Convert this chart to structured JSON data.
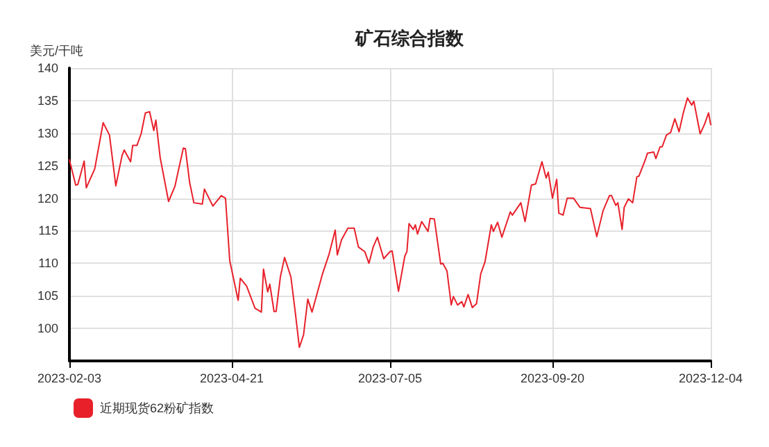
{
  "chart_data": {
    "type": "line",
    "title": "矿石综合指数",
    "ylabel": "美元/干吨",
    "x": [
      "2023-02-03",
      "2023-02-06",
      "2023-02-07",
      "2023-02-10",
      "2023-02-11",
      "2023-02-15",
      "2023-02-19",
      "2023-02-22",
      "2023-02-25",
      "2023-02-28",
      "2023-03-01",
      "2023-03-04",
      "2023-03-05",
      "2023-03-07",
      "2023-03-09",
      "2023-03-11",
      "2023-03-13",
      "2023-03-15",
      "2023-03-16",
      "2023-03-18",
      "2023-03-22",
      "2023-03-25",
      "2023-03-29",
      "2023-03-30",
      "2023-04-01",
      "2023-04-03",
      "2023-04-07",
      "2023-04-08",
      "2023-04-12",
      "2023-04-16",
      "2023-04-18",
      "2023-04-20",
      "2023-04-24",
      "2023-04-25",
      "2023-04-28",
      "2023-05-02",
      "2023-05-05",
      "2023-05-06",
      "2023-05-08",
      "2023-05-09",
      "2023-05-11",
      "2023-05-12",
      "2023-05-14",
      "2023-05-16",
      "2023-05-19",
      "2023-05-21",
      "2023-05-23",
      "2023-05-25",
      "2023-05-27",
      "2023-05-29",
      "2023-06-03",
      "2023-06-06",
      "2023-06-09",
      "2023-06-10",
      "2023-06-12",
      "2023-06-15",
      "2023-06-18",
      "2023-06-20",
      "2023-06-23",
      "2023-06-25",
      "2023-06-27",
      "2023-06-29",
      "2023-07-02",
      "2023-07-05",
      "2023-07-06",
      "2023-07-09",
      "2023-07-12",
      "2023-07-13",
      "2023-07-14",
      "2023-07-16",
      "2023-07-17",
      "2023-07-18",
      "2023-07-20",
      "2023-07-23",
      "2023-07-24",
      "2023-07-26",
      "2023-07-29",
      "2023-07-30",
      "2023-08-01",
      "2023-08-03",
      "2023-08-04",
      "2023-08-06",
      "2023-08-08",
      "2023-08-09",
      "2023-08-11",
      "2023-08-13",
      "2023-08-15",
      "2023-08-17",
      "2023-08-19",
      "2023-08-22",
      "2023-08-23",
      "2023-08-25",
      "2023-08-27",
      "2023-08-31",
      "2023-09-01",
      "2023-09-05",
      "2023-09-07",
      "2023-09-10",
      "2023-09-12",
      "2023-09-15",
      "2023-09-17",
      "2023-09-18",
      "2023-09-20",
      "2023-09-22",
      "2023-09-23",
      "2023-09-25",
      "2023-09-27",
      "2023-09-30",
      "2023-10-03",
      "2023-10-08",
      "2023-10-11",
      "2023-10-14",
      "2023-10-17",
      "2023-10-18",
      "2023-10-20",
      "2023-10-21",
      "2023-10-23",
      "2023-10-24",
      "2023-10-26",
      "2023-10-28",
      "2023-10-30",
      "2023-10-31",
      "2023-11-03",
      "2023-11-04",
      "2023-11-07",
      "2023-11-08",
      "2023-11-10",
      "2023-11-11",
      "2023-11-13",
      "2023-11-15",
      "2023-11-17",
      "2023-11-19",
      "2023-11-21",
      "2023-11-23",
      "2023-11-25",
      "2023-11-26",
      "2023-11-29",
      "2023-12-01",
      "2023-12-03",
      "2023-12-04"
    ],
    "series": [
      {
        "name": "近期现货62粉矿指数",
        "color": "#e8202a",
        "values": [
          125.9,
          122.0,
          122.1,
          125.7,
          121.6,
          124.5,
          131.6,
          129.7,
          121.9,
          126.6,
          127.4,
          125.6,
          128.1,
          128.1,
          129.9,
          133.1,
          133.3,
          130.4,
          132,
          126.3,
          119.5,
          121.8,
          127.7,
          127.6,
          122.4,
          119.3,
          119.1,
          121.4,
          118.8,
          120.4,
          120,
          110.4,
          104.3,
          107.7,
          106.5,
          103.1,
          102.5,
          109.1,
          105.6,
          106.8,
          102.6,
          102.6,
          107.9,
          110.9,
          107.9,
          102.7,
          97.1,
          99,
          104.5,
          102.5,
          108.4,
          111.3,
          115.1,
          111.3,
          113.6,
          115.4,
          115.4,
          112.5,
          111.8,
          110,
          112.5,
          114,
          110.7,
          111.8,
          111.9,
          105.7,
          111.1,
          111.8,
          116.1,
          115.2,
          115.9,
          114.5,
          116.4,
          114.9,
          116.9,
          116.8,
          109.9,
          110,
          108.8,
          103.6,
          104.9,
          103.6,
          104.1,
          103.3,
          105.2,
          103.2,
          103.8,
          108.4,
          110.2,
          115.9,
          114.9,
          116.3,
          114,
          117.9,
          117.4,
          119.3,
          116.4,
          122,
          122.2,
          125.6,
          123.1,
          124,
          120,
          122.9,
          117.7,
          117.4,
          120,
          120,
          118.6,
          118.4,
          114.1,
          118.1,
          120.4,
          120.4,
          118.9,
          119.3,
          115.2,
          118.6,
          119.9,
          119.3,
          123.3,
          123.4,
          125.9,
          126.9,
          127.1,
          126.1,
          127.9,
          127.9,
          129.7,
          130.1,
          132.2,
          130.2,
          133.1,
          135.4,
          134.3,
          134.9,
          129.9,
          131.3,
          133.1,
          131.3
        ]
      }
    ],
    "xlim": [
      "2023-02-03",
      "2023-12-04"
    ],
    "xticks": [
      "2023-02-03",
      "2023-04-21",
      "2023-07-05",
      "2023-09-20",
      "2023-12-04"
    ],
    "ylim": [
      95,
      140
    ],
    "yticks": [
      100,
      105,
      110,
      115,
      120,
      125,
      130,
      135,
      140
    ],
    "grid": true,
    "legend": "bottom left",
    "marker": "none",
    "line_style": "solid"
  }
}
